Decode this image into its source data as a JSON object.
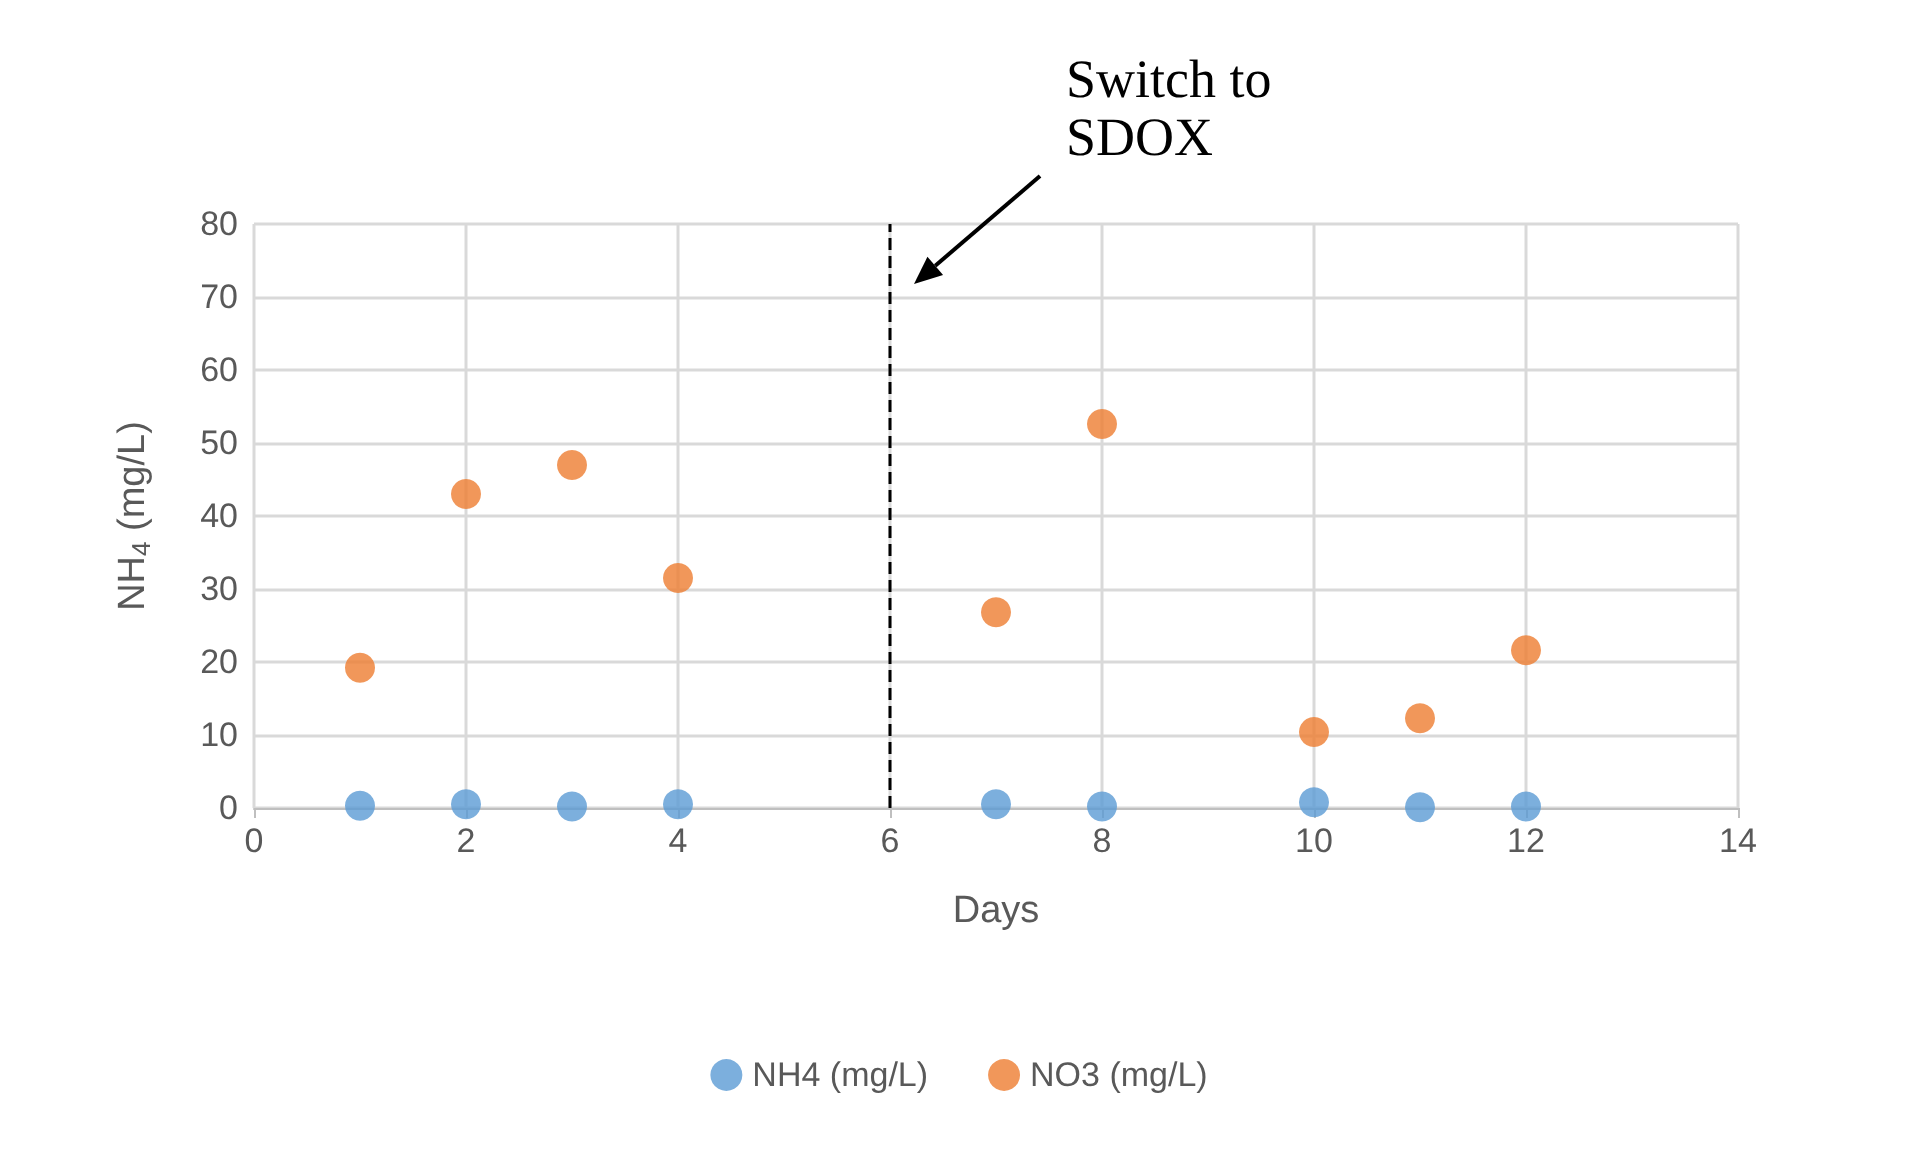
{
  "chart_data": {
    "type": "scatter",
    "xlabel": "Days",
    "ylabel": "NH$_{4}$ (mg/L)",
    "x": [
      1,
      2,
      3,
      4,
      7,
      8,
      10,
      11,
      12
    ],
    "series": [
      {
        "name": "NH4 (mg/L)",
        "color": "#5b9bd5",
        "values": [
          0.3,
          0.5,
          0.2,
          0.5,
          0.5,
          0.2,
          0.8,
          0.1,
          0.2
        ]
      },
      {
        "name": "NO3 (mg/L)",
        "color": "#ed7d31",
        "values": [
          19.2,
          43,
          47,
          31.5,
          26.8,
          52.6,
          10.4,
          12.3,
          21.6
        ]
      }
    ],
    "xlim": [
      0,
      14
    ],
    "xticks": [
      0,
      2,
      4,
      6,
      8,
      10,
      12,
      14
    ],
    "ylim": [
      0,
      80
    ],
    "yticks": [
      0,
      10,
      20,
      30,
      40,
      50,
      60,
      70,
      80
    ],
    "grid": true,
    "legend": "bottom",
    "marker": "circle",
    "ref_lines": [
      {
        "axis": "x",
        "value": 6,
        "color": "#000000",
        "line_style": "dashed"
      }
    ],
    "annotations": [
      "Switch to SDOX"
    ]
  }
}
